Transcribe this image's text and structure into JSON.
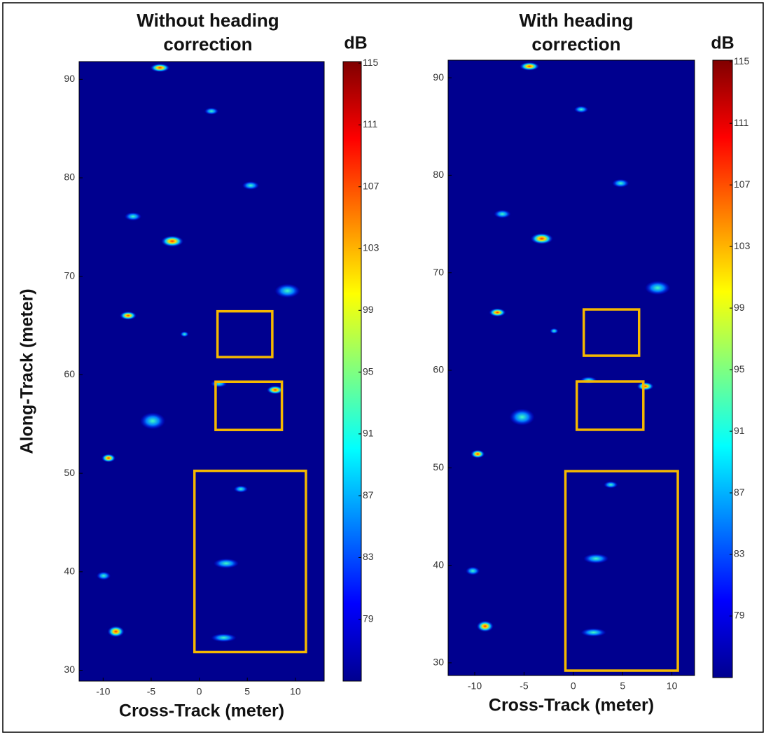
{
  "chart_data": [
    {
      "type": "heatmap",
      "title": "Without heading correction",
      "xlabel": "Cross-Track (meter)",
      "ylabel": "Along-Track (meter)",
      "xlim": [
        -12.5,
        13
      ],
      "ylim": [
        28.9,
        91.8
      ],
      "xticks": [
        -10,
        -5,
        0,
        5,
        10
      ],
      "yticks": [
        30,
        40,
        50,
        60,
        70,
        80,
        90
      ],
      "colorbar": {
        "label": "dB",
        "colormap": "jet",
        "lim": [
          75,
          115.1
        ],
        "ticks": [
          79,
          83,
          87,
          91,
          95,
          99,
          103,
          107,
          111,
          115
        ]
      },
      "boxes": [
        {
          "x": [
            1.9,
            7.6
          ],
          "y": [
            61.8,
            66.45
          ],
          "color": "#f5b800"
        },
        {
          "x": [
            1.7,
            8.6
          ],
          "y": [
            54.4,
            59.3
          ],
          "color": "#f5b800"
        },
        {
          "x": [
            -0.5,
            11.1
          ],
          "y": [
            31.85,
            50.25
          ],
          "color": "#f5b800"
        }
      ]
    },
    {
      "type": "heatmap",
      "title": "With heading correction",
      "xlabel": "Cross-Track (meter)",
      "ylabel": null,
      "xlim": [
        -12.7,
        12.3
      ],
      "ylim": [
        28.7,
        91.8
      ],
      "xticks": [
        -10,
        -5,
        0,
        5,
        10
      ],
      "yticks": [
        30,
        40,
        50,
        60,
        70,
        80,
        90
      ],
      "colorbar": {
        "label": "dB",
        "colormap": "jet",
        "lim": [
          75,
          115.1
        ],
        "ticks": [
          79,
          83,
          87,
          91,
          95,
          99,
          103,
          107,
          111,
          115
        ]
      },
      "boxes": [
        {
          "x": [
            1.06,
            6.67
          ],
          "y": [
            61.5,
            66.24
          ],
          "color": "#f5b800"
        },
        {
          "x": [
            0.35,
            7.1
          ],
          "y": [
            53.9,
            58.85
          ],
          "color": "#f5b800"
        },
        {
          "x": [
            -0.8,
            10.6
          ],
          "y": [
            29.2,
            49.66
          ],
          "color": "#f5b800"
        }
      ]
    }
  ]
}
